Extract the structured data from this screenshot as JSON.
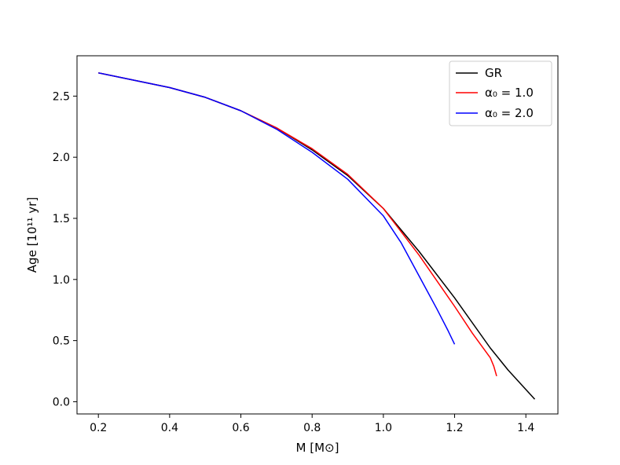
{
  "chart_data": {
    "type": "line",
    "title": "",
    "xlabel": "M [M⊙]",
    "ylabel": "Age [10¹¹ yr]",
    "xlim": [
      0.14,
      1.49
    ],
    "ylim": [
      -0.1,
      2.83
    ],
    "xticks": [
      0.2,
      0.4,
      0.6,
      0.8,
      1.0,
      1.2,
      1.4
    ],
    "xtick_labels": [
      "0.2",
      "0.4",
      "0.6",
      "0.8",
      "1.0",
      "1.2",
      "1.4"
    ],
    "yticks": [
      0.0,
      0.5,
      1.0,
      1.5,
      2.0,
      2.5
    ],
    "ytick_labels": [
      "0.0",
      "0.5",
      "1.0",
      "1.5",
      "2.0",
      "2.5"
    ],
    "grid": false,
    "legend_position": "top-right",
    "series": [
      {
        "name": "GR",
        "color": "#000000",
        "x": [
          0.2,
          0.3,
          0.4,
          0.5,
          0.6,
          0.7,
          0.8,
          0.9,
          1.0,
          1.1,
          1.2,
          1.3,
          1.35,
          1.4,
          1.425
        ],
        "y": [
          2.69,
          2.63,
          2.57,
          2.49,
          2.38,
          2.24,
          2.06,
          1.85,
          1.58,
          1.23,
          0.85,
          0.44,
          0.26,
          0.1,
          0.02
        ]
      },
      {
        "name": "α₀ = 1.0",
        "color": "#ff0000",
        "x": [
          0.2,
          0.3,
          0.4,
          0.5,
          0.6,
          0.7,
          0.8,
          0.9,
          1.0,
          1.1,
          1.2,
          1.25,
          1.3,
          1.31,
          1.318
        ],
        "y": [
          2.69,
          2.63,
          2.57,
          2.49,
          2.38,
          2.24,
          2.07,
          1.86,
          1.58,
          1.2,
          0.78,
          0.56,
          0.36,
          0.29,
          0.21
        ]
      },
      {
        "name": "α₀ = 2.0",
        "color": "#0000ff",
        "x": [
          0.2,
          0.3,
          0.4,
          0.5,
          0.6,
          0.7,
          0.8,
          0.9,
          1.0,
          1.05,
          1.1,
          1.15,
          1.18,
          1.2
        ],
        "y": [
          2.69,
          2.63,
          2.57,
          2.49,
          2.38,
          2.23,
          2.04,
          1.82,
          1.52,
          1.3,
          1.03,
          0.76,
          0.59,
          0.47
        ]
      }
    ]
  }
}
